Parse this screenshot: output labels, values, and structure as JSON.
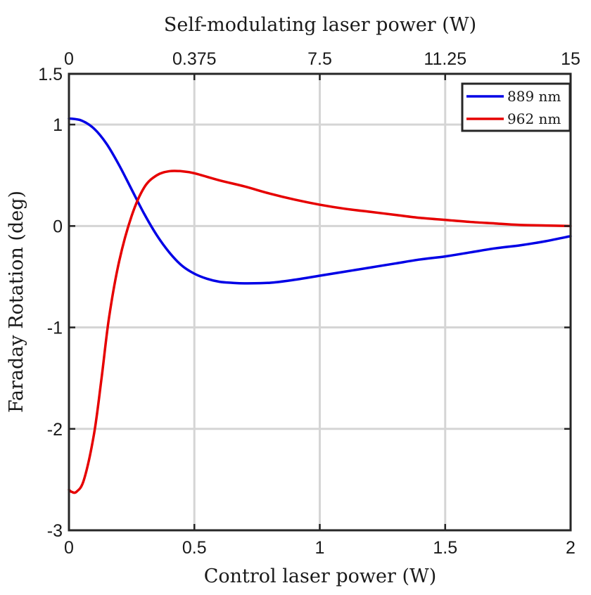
{
  "chart_data": {
    "type": "line",
    "title": "",
    "xlabel": "Control laser power (W)",
    "ylabel": "Faraday Rotation (deg)",
    "top_xlabel": "Self-modulating laser power (W)",
    "xlim": [
      0,
      2
    ],
    "ylim": [
      -3,
      1.5
    ],
    "x_ticks": [
      0,
      0.5,
      1,
      1.5,
      2
    ],
    "x_tick_labels": [
      "0",
      "0.5",
      "1",
      "1.5",
      "2"
    ],
    "y_ticks": [
      -3,
      -2,
      -1,
      0,
      1,
      1.5
    ],
    "y_tick_labels": [
      "-3",
      "-2",
      "-1",
      "0",
      "1",
      "1.5"
    ],
    "top_ticks": [
      0,
      0.5,
      1,
      1.5,
      2
    ],
    "top_tick_labels": [
      "0",
      "0.375",
      "7.5",
      "11.25",
      "15"
    ],
    "grid": true,
    "legend_position": "top-right",
    "series": [
      {
        "name": "889 nm",
        "color": "#0000e6",
        "x": [
          0,
          0.05,
          0.1,
          0.15,
          0.2,
          0.25,
          0.3,
          0.35,
          0.4,
          0.45,
          0.5,
          0.55,
          0.6,
          0.65,
          0.7,
          0.8,
          0.9,
          1.0,
          1.1,
          1.2,
          1.3,
          1.4,
          1.5,
          1.6,
          1.7,
          1.8,
          1.9,
          2.0
        ],
        "y": [
          1.06,
          1.04,
          0.96,
          0.81,
          0.6,
          0.36,
          0.12,
          -0.09,
          -0.26,
          -0.39,
          -0.47,
          -0.52,
          -0.55,
          -0.56,
          -0.565,
          -0.56,
          -0.53,
          -0.49,
          -0.45,
          -0.41,
          -0.37,
          -0.33,
          -0.3,
          -0.26,
          -0.22,
          -0.19,
          -0.15,
          -0.1
        ]
      },
      {
        "name": "962 nm",
        "color": "#e60000",
        "x": [
          0,
          0.01,
          0.03,
          0.06,
          0.1,
          0.13,
          0.16,
          0.2,
          0.25,
          0.3,
          0.35,
          0.4,
          0.45,
          0.5,
          0.6,
          0.7,
          0.8,
          0.9,
          1.0,
          1.1,
          1.2,
          1.3,
          1.4,
          1.5,
          1.6,
          1.7,
          1.8,
          1.9,
          2.0
        ],
        "y": [
          -2.6,
          -2.62,
          -2.62,
          -2.5,
          -2.05,
          -1.5,
          -0.9,
          -0.35,
          0.1,
          0.38,
          0.5,
          0.54,
          0.54,
          0.52,
          0.45,
          0.39,
          0.32,
          0.26,
          0.21,
          0.17,
          0.14,
          0.11,
          0.08,
          0.06,
          0.04,
          0.025,
          0.01,
          0.005,
          0.0
        ]
      }
    ]
  }
}
